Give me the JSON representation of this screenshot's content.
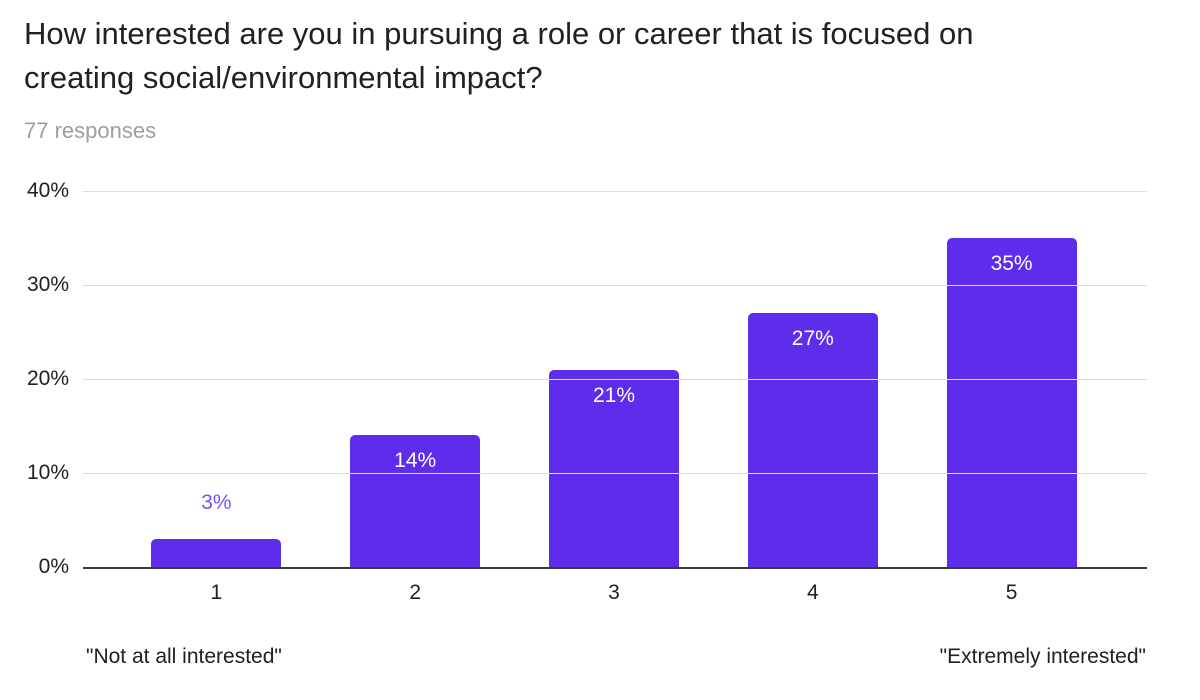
{
  "title": "How interested are you in pursuing a role or career that is focused on creating social/environmental impact?",
  "subtitle": "77 responses",
  "chart_data": {
    "type": "bar",
    "title": "How interested are you in pursuing a role or career that is focused on creating social/environmental impact?",
    "subtitle": "77 responses",
    "categories": [
      "1",
      "2",
      "3",
      "4",
      "5"
    ],
    "values": [
      3,
      14,
      21,
      27,
      35
    ],
    "value_labels": [
      "3%",
      "14%",
      "21%",
      "27%",
      "35%"
    ],
    "yticks": [
      "0%",
      "10%",
      "20%",
      "30%",
      "40%"
    ],
    "ylim": [
      0,
      40
    ],
    "grid": true,
    "legend": "none",
    "inside_label_min": 10,
    "colors": {
      "bar": "#5e2ceb",
      "inside_label": "#ffffff",
      "outside_label": "#7b52ee",
      "gridline": "#dcdcdc",
      "axis_line": "#3a3a3a",
      "title_text": "#212121",
      "subtitle_text": "#9e9e9e"
    },
    "axis_labels": {
      "left": "\"Not at all interested\"",
      "right": "\"Extremely interested\""
    }
  }
}
